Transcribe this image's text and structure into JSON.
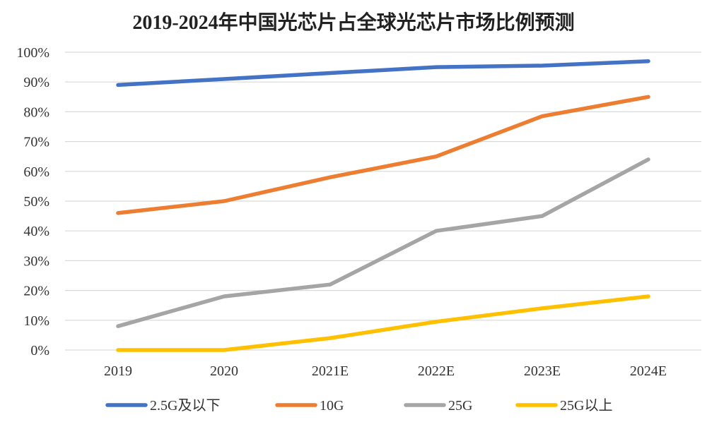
{
  "chart_data": {
    "type": "line",
    "title": "2019-2024年中国光芯片占全球光芯片市场比例预测",
    "xlabel": "",
    "ylabel": "",
    "categories": [
      "2019",
      "2020",
      "2021E",
      "2022E",
      "2023E",
      "2024E"
    ],
    "ylim": [
      0,
      100
    ],
    "yticks": [
      "0%",
      "10%",
      "20%",
      "30%",
      "40%",
      "50%",
      "60%",
      "70%",
      "80%",
      "90%",
      "100%"
    ],
    "grid": "horizontal",
    "legend_position": "bottom",
    "series": [
      {
        "name": "2.5G及以下",
        "color": "#4472C4",
        "values": [
          89,
          91,
          93,
          95,
          95.5,
          97
        ]
      },
      {
        "name": "10G",
        "color": "#ED7D31",
        "values": [
          46,
          50,
          58,
          65,
          78.5,
          85
        ]
      },
      {
        "name": "25G",
        "color": "#A5A5A5",
        "values": [
          8,
          18,
          22,
          40,
          45,
          64
        ]
      },
      {
        "name": "25G以上",
        "color": "#FFC000",
        "values": [
          0,
          0,
          4,
          9.5,
          14,
          18
        ]
      }
    ]
  }
}
